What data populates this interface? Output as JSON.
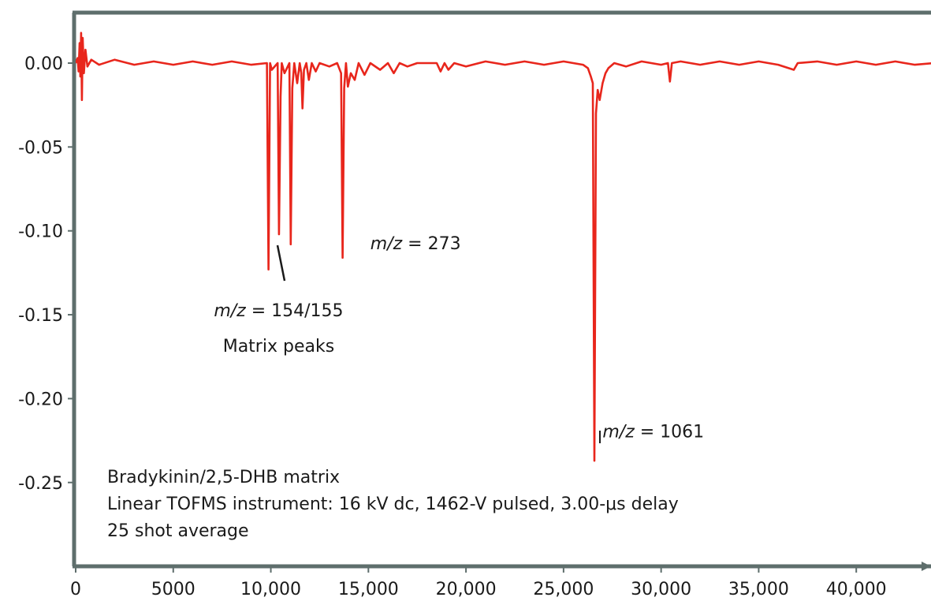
{
  "chart_data": {
    "type": "line",
    "title": "",
    "xlabel": "",
    "ylabel": "",
    "xlim": [
      0,
      44000
    ],
    "ylim": [
      -0.3,
      0.03
    ],
    "grid": false,
    "legend": "none",
    "colors": {
      "series": "#e8261c",
      "axis": "#5e6e6c",
      "text": "#1a1a1a"
    },
    "x_ticks": [
      {
        "value": 0,
        "label": "0"
      },
      {
        "value": 5000,
        "label": "5000"
      },
      {
        "value": 10000,
        "label": "10,000"
      },
      {
        "value": 15000,
        "label": "15,000"
      },
      {
        "value": 20000,
        "label": "20,000"
      },
      {
        "value": 25000,
        "label": "25,000"
      },
      {
        "value": 30000,
        "label": "30,000"
      },
      {
        "value": 35000,
        "label": "35,000"
      },
      {
        "value": 40000,
        "label": "40,000"
      }
    ],
    "y_ticks": [
      {
        "value": 0.0,
        "label": "0.00"
      },
      {
        "value": -0.05,
        "label": "-0.05"
      },
      {
        "value": -0.1,
        "label": "-0.10"
      },
      {
        "value": -0.15,
        "label": "-0.15"
      },
      {
        "value": -0.2,
        "label": "-0.20"
      },
      {
        "value": -0.25,
        "label": "-0.25"
      }
    ],
    "series": [
      {
        "baseline": 0.0,
        "points": [
          [
            0,
            0.0
          ],
          [
            100,
            0.003
          ],
          [
            150,
            -0.005
          ],
          [
            200,
            0.012
          ],
          [
            240,
            -0.008
          ],
          [
            280,
            0.018
          ],
          [
            320,
            -0.022
          ],
          [
            360,
            0.015
          ],
          [
            420,
            -0.006
          ],
          [
            500,
            0.008
          ],
          [
            600,
            -0.002
          ],
          [
            800,
            0.002
          ],
          [
            1200,
            -0.001
          ],
          [
            2000,
            0.002
          ],
          [
            3000,
            -0.001
          ],
          [
            4000,
            0.001
          ],
          [
            5000,
            -0.001
          ],
          [
            6000,
            0.001
          ],
          [
            7000,
            -0.001
          ],
          [
            8000,
            0.001
          ],
          [
            9000,
            -0.001
          ],
          [
            9800,
            0.0
          ],
          [
            9880,
            -0.123
          ],
          [
            9960,
            0.0
          ],
          [
            10050,
            -0.004
          ],
          [
            10350,
            0.0
          ],
          [
            10420,
            -0.102
          ],
          [
            10500,
            -0.02
          ],
          [
            10560,
            0.0
          ],
          [
            10700,
            -0.006
          ],
          [
            10950,
            0.0
          ],
          [
            11020,
            -0.108
          ],
          [
            11100,
            -0.015
          ],
          [
            11200,
            0.0
          ],
          [
            11350,
            -0.012
          ],
          [
            11480,
            0.0
          ],
          [
            11560,
            -0.006
          ],
          [
            11620,
            -0.027
          ],
          [
            11700,
            -0.004
          ],
          [
            11820,
            0.0
          ],
          [
            11950,
            -0.01
          ],
          [
            12100,
            0.0
          ],
          [
            12300,
            -0.005
          ],
          [
            12500,
            0.0
          ],
          [
            13000,
            -0.002
          ],
          [
            13400,
            0.0
          ],
          [
            13600,
            -0.006
          ],
          [
            13680,
            -0.116
          ],
          [
            13760,
            -0.015
          ],
          [
            13850,
            0.0
          ],
          [
            13950,
            -0.014
          ],
          [
            14100,
            -0.006
          ],
          [
            14300,
            -0.01
          ],
          [
            14500,
            0.0
          ],
          [
            14800,
            -0.007
          ],
          [
            15100,
            0.0
          ],
          [
            15600,
            -0.004
          ],
          [
            16000,
            0.0
          ],
          [
            16300,
            -0.006
          ],
          [
            16600,
            0.0
          ],
          [
            17000,
            -0.002
          ],
          [
            17500,
            0.0
          ],
          [
            18500,
            0.0
          ],
          [
            18700,
            -0.005
          ],
          [
            18900,
            0.0
          ],
          [
            19100,
            -0.004
          ],
          [
            19400,
            0.0
          ],
          [
            20000,
            -0.002
          ],
          [
            21000,
            0.001
          ],
          [
            22000,
            -0.001
          ],
          [
            23000,
            0.001
          ],
          [
            24000,
            -0.001
          ],
          [
            25000,
            0.001
          ],
          [
            26000,
            -0.001
          ],
          [
            26250,
            -0.003
          ],
          [
            26400,
            -0.008
          ],
          [
            26500,
            -0.012
          ],
          [
            26580,
            -0.237
          ],
          [
            26660,
            -0.03
          ],
          [
            26750,
            -0.016
          ],
          [
            26850,
            -0.022
          ],
          [
            27000,
            -0.012
          ],
          [
            27150,
            -0.006
          ],
          [
            27300,
            -0.003
          ],
          [
            27600,
            0.0
          ],
          [
            28200,
            -0.002
          ],
          [
            29000,
            0.001
          ],
          [
            30000,
            -0.001
          ],
          [
            30350,
            0.0
          ],
          [
            30450,
            -0.011
          ],
          [
            30550,
            0.0
          ],
          [
            31000,
            0.001
          ],
          [
            32000,
            -0.001
          ],
          [
            33000,
            0.001
          ],
          [
            34000,
            -0.001
          ],
          [
            35000,
            0.001
          ],
          [
            36000,
            -0.001
          ],
          [
            36800,
            -0.004
          ],
          [
            37000,
            0.0
          ],
          [
            38000,
            0.001
          ],
          [
            39000,
            -0.001
          ],
          [
            40000,
            0.001
          ],
          [
            41000,
            -0.001
          ],
          [
            42000,
            0.001
          ],
          [
            43000,
            -0.001
          ],
          [
            44000,
            0.0
          ]
        ]
      }
    ],
    "annotations": [
      {
        "id": "a154",
        "x": 10400,
        "y": -0.151,
        "prefix": "m/z",
        "text": " = 154/155"
      },
      {
        "id": "amatrix",
        "x": 10400,
        "y": -0.172,
        "prefix": "",
        "text": "Matrix peaks"
      },
      {
        "id": "a273",
        "x": 15100,
        "y": -0.111,
        "prefix": "m/z",
        "text": " = 273"
      },
      {
        "id": "a1061",
        "x": 27000,
        "y": -0.223,
        "prefix": "m/z",
        "text": " = 1061"
      }
    ],
    "notes": [
      "Bradykinin/2,5-DHB matrix",
      "Linear TOFMS instrument: 16 kV dc, 1462-V pulsed, 3.00-μs delay",
      "25 shot average"
    ]
  }
}
